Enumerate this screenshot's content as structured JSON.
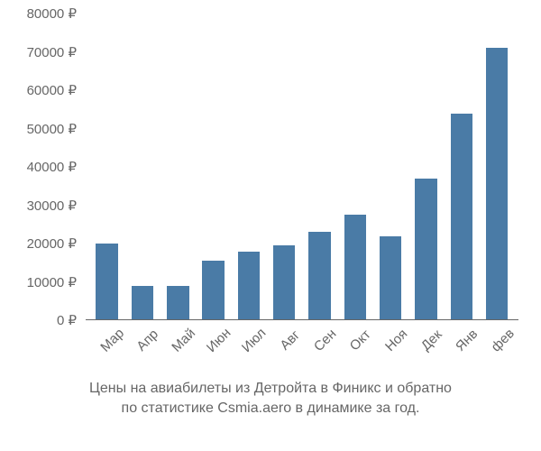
{
  "chart": {
    "type": "bar",
    "currency_suffix": " ₽",
    "categories": [
      "Мар",
      "Апр",
      "Май",
      "Июн",
      "Июл",
      "Авг",
      "Сен",
      "Окт",
      "Ноя",
      "Дек",
      "Янв",
      "фев"
    ],
    "values": [
      20000,
      9000,
      9000,
      15500,
      18000,
      19500,
      23000,
      27500,
      22000,
      37000,
      54000,
      71000
    ],
    "bar_color": "#4a7ba6",
    "y_ticks": [
      0,
      10000,
      20000,
      30000,
      40000,
      50000,
      60000,
      70000,
      80000
    ],
    "ylim": [
      0,
      80000
    ],
    "background_color": "#ffffff",
    "text_color": "#666666",
    "axis_fontsize": 15,
    "caption_fontsize": 16,
    "bar_width_ratio": 0.62
  },
  "caption": {
    "line1": "Цены на авиабилеты из Детройта в Финикс и обратно",
    "line2": "по статистике Csmia.aero в динамике за год."
  }
}
